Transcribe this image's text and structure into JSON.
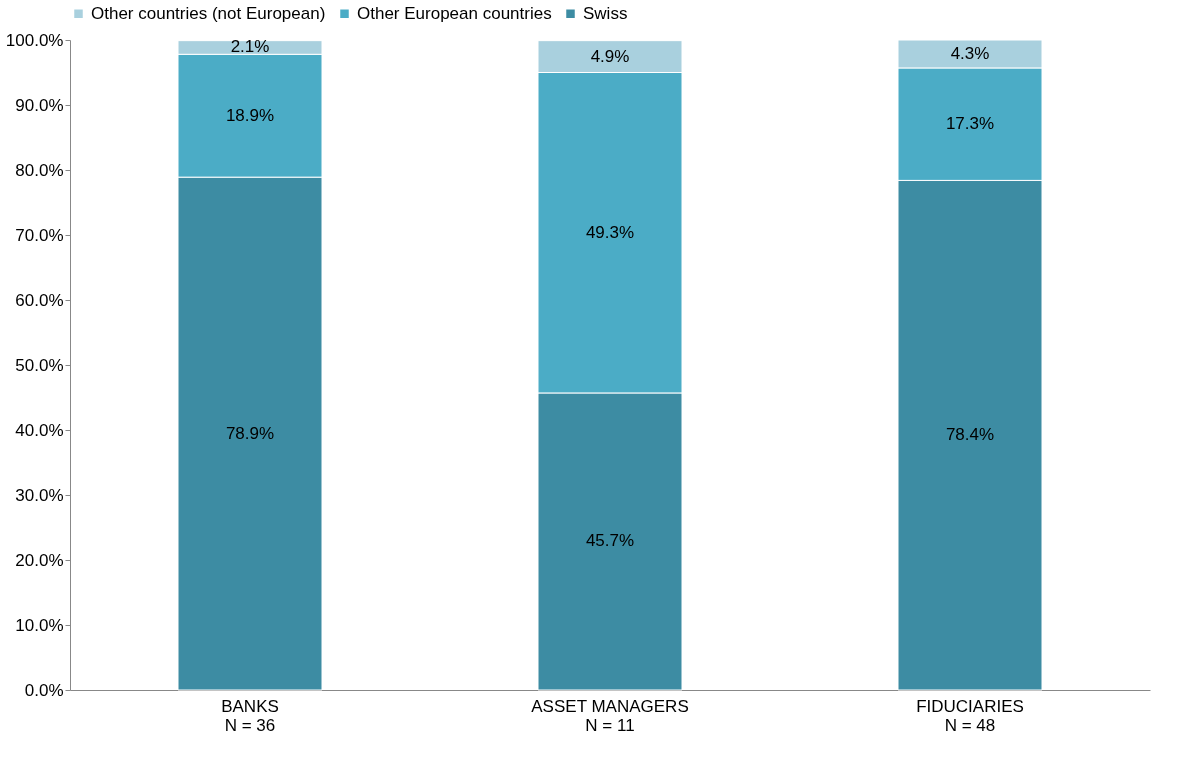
{
  "chart_data": {
    "type": "bar",
    "stacked": true,
    "grid": false,
    "legend": "top",
    "categories": [
      "BANKS\nN = 36",
      "ASSET MANAGERS\nN = 11",
      "FIDUCIARIES\nN = 48"
    ],
    "series": [
      {
        "name": "Swiss",
        "color": "#3d8ca3",
        "values": [
          78.9,
          45.7,
          78.4
        ],
        "value_labels": [
          "78.9%",
          "45.7%",
          "78.4%"
        ]
      },
      {
        "name": "Other European countries",
        "color": "#4bacc6",
        "values": [
          18.9,
          49.3,
          17.3
        ],
        "value_labels": [
          "18.9%",
          "49.3%",
          "17.3%"
        ]
      },
      {
        "name": "Other countries (not European)",
        "color": "#a9d0de",
        "values": [
          2.1,
          4.9,
          4.3
        ],
        "value_labels": [
          "2.1%",
          "4.9%",
          "4.3%"
        ]
      }
    ],
    "ylim": [
      0,
      100
    ],
    "yticks": [
      {
        "value": 0,
        "label": "0.0%"
      },
      {
        "value": 10,
        "label": "10.0%"
      },
      {
        "value": 20,
        "label": "20.0%"
      },
      {
        "value": 30,
        "label": "30.0%"
      },
      {
        "value": 40,
        "label": "40.0%"
      },
      {
        "value": 50,
        "label": "50.0%"
      },
      {
        "value": 60,
        "label": "60.0%"
      },
      {
        "value": 70,
        "label": "70.0%"
      },
      {
        "value": 80,
        "label": "80.0%"
      },
      {
        "value": 90,
        "label": "90.0%"
      },
      {
        "value": 100,
        "label": "100.0%"
      }
    ]
  }
}
